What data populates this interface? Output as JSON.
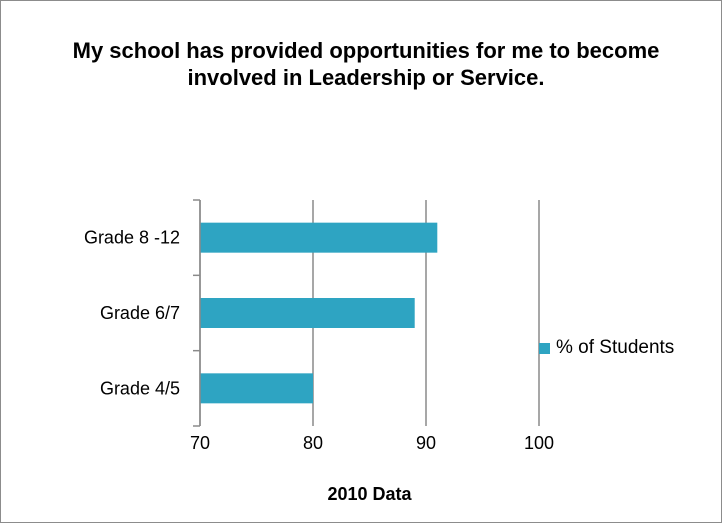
{
  "chart_data": {
    "type": "bar",
    "orientation": "horizontal",
    "title": "My school has provided opportunities for me to become involved in Leadership or Service.",
    "categories": [
      "Grade 8 -12",
      "Grade 6/7",
      "Grade 4/5"
    ],
    "series": [
      {
        "name": "% of Students",
        "values": [
          91,
          89,
          80
        ],
        "color": "#2ea4c2"
      }
    ],
    "xlabel": "2010 Data",
    "ylabel": "",
    "xlim": [
      70,
      100
    ],
    "xticks": [
      "70",
      "80",
      "90",
      "100"
    ],
    "grid": true,
    "legend_position": "right"
  }
}
